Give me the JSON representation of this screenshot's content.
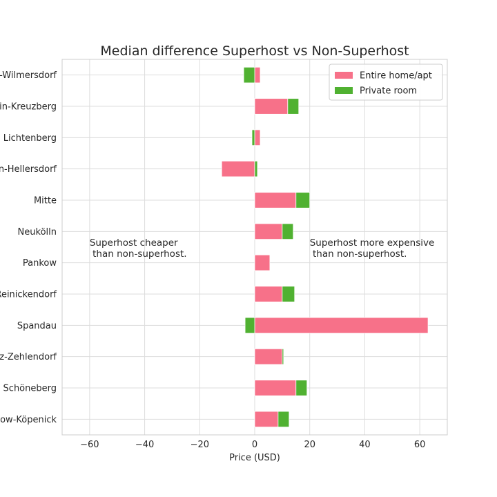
{
  "chart_data": {
    "type": "bar",
    "orientation": "horizontal",
    "stacked": true,
    "title": "Median difference Superhost vs Non-Superhost",
    "xlabel": "Price (USD)",
    "ylabel": "",
    "xlim": [
      -70,
      70
    ],
    "xticks": [
      -60,
      -40,
      -20,
      0,
      20,
      40,
      60
    ],
    "xtick_labels": [
      "−60",
      "−40",
      "−20",
      "0",
      "20",
      "40",
      "60"
    ],
    "grid": true,
    "legend_position": "top-right",
    "categories": [
      "Treptow-Köpenick",
      "Tempelhof - Schöneberg",
      "Steglitz-Zehlendorf",
      "Spandau",
      "Reinickendorf",
      "Pankow",
      "Neukölln",
      "Mitte",
      "Marzahn-Hellersdorf",
      "Lichtenberg",
      "Friedrichshain-Kreuzberg",
      "Charlottenburg-Wilmersdorf"
    ],
    "series": [
      {
        "name": "Entire home/apt",
        "color": "#f77189",
        "values": [
          8.5,
          15,
          10,
          63,
          10,
          5.5,
          10,
          15,
          -12,
          2,
          12,
          2
        ]
      },
      {
        "name": "Private room",
        "color": "#50b131",
        "values": [
          4,
          4,
          0.5,
          -3.5,
          4.5,
          0,
          4,
          5,
          1,
          -1,
          4,
          -4
        ]
      }
    ],
    "annotations": [
      {
        "text_lines": [
          "Superhost cheaper",
          " than non-superhost."
        ],
        "x": -60
      },
      {
        "text_lines": [
          "Superhost more expensive",
          " than non-superhost."
        ],
        "x": 20
      }
    ]
  }
}
